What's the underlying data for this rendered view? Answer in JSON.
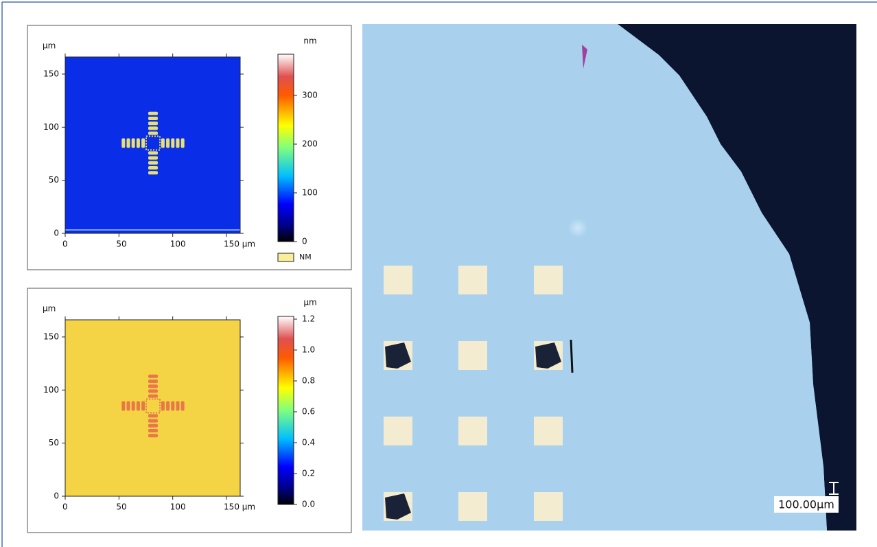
{
  "panels": [
    {
      "y_unit": "µm",
      "y_ticks": [
        "0",
        "50",
        "100",
        "150"
      ],
      "x_ticks": [
        "0",
        "50",
        "100",
        "150 µm"
      ],
      "colorbar_unit": "nm",
      "colorbar_ticks": [
        "0",
        "100",
        "200",
        "300"
      ],
      "legend": "NM"
    },
    {
      "y_unit": "µm",
      "y_ticks": [
        "0",
        "50",
        "100",
        "150"
      ],
      "x_ticks": [
        "0",
        "50",
        "100",
        "150 µm"
      ],
      "colorbar_unit": "µm",
      "colorbar_ticks": [
        "0.0",
        "0.2",
        "0.4",
        "0.6",
        "0.8",
        "1.0",
        "1.2"
      ]
    }
  ],
  "micrograph": {
    "scale_bar": "100.00µm"
  }
}
